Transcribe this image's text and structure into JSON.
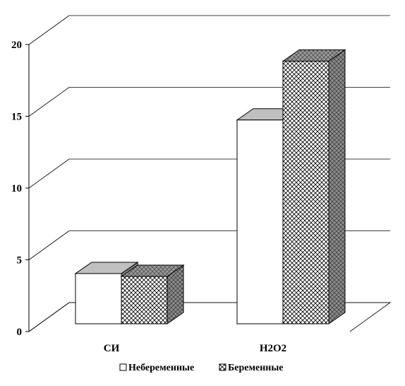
{
  "chart_data": {
    "type": "bar",
    "categories": [
      "СИ",
      "H2O2"
    ],
    "series": [
      {
        "name": "Небеременные",
        "values": [
          3.5,
          14.2
        ]
      },
      {
        "name": "Беременные",
        "values": [
          3.3,
          18.3
        ]
      }
    ],
    "ylim": [
      0,
      20
    ],
    "yticks": [
      0,
      5,
      10,
      15,
      20
    ],
    "grid": true,
    "legend": "bottom",
    "colors": {
      "front": "#ffffff",
      "top": "#c0c0c0",
      "side": "#808080",
      "pattern": "#000000"
    }
  }
}
